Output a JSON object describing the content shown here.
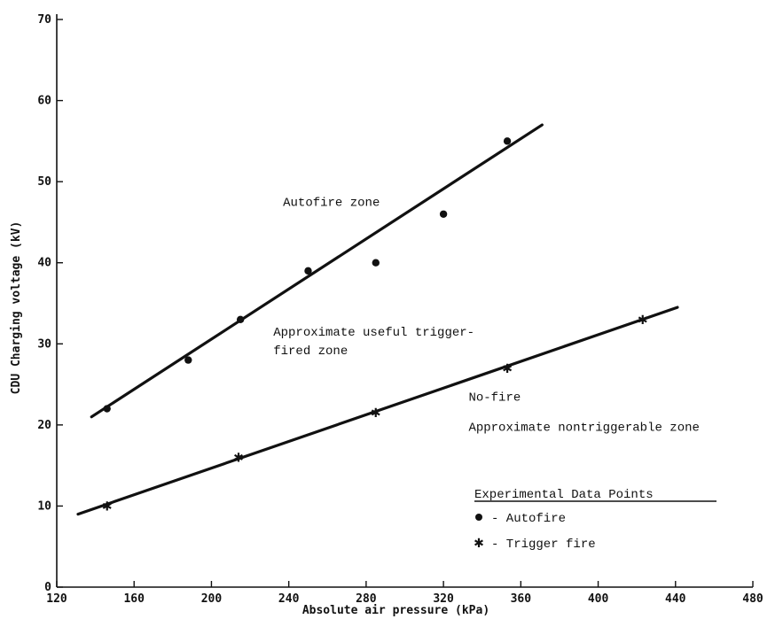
{
  "chart_data": {
    "type": "scatter",
    "xlabel": "Absolute air pressure (kPa)",
    "ylabel": "CDU Charging voltage (kV)",
    "xlim": [
      120,
      480
    ],
    "ylim": [
      0,
      70
    ],
    "x_ticks": [
      120,
      160,
      200,
      240,
      280,
      320,
      360,
      400,
      440,
      480
    ],
    "y_ticks": [
      0,
      10,
      20,
      30,
      40,
      50,
      60,
      70
    ],
    "grid": false,
    "series": [
      {
        "name": "Autofire",
        "marker": "dot",
        "points": [
          [
            146,
            22
          ],
          [
            188,
            28
          ],
          [
            215,
            33
          ],
          [
            250,
            39
          ],
          [
            285,
            40
          ],
          [
            320,
            46
          ],
          [
            353,
            55
          ]
        ],
        "fit_line": [
          [
            138,
            21
          ],
          [
            371,
            57
          ]
        ]
      },
      {
        "name": "Trigger fire",
        "marker": "star",
        "points": [
          [
            146,
            10
          ],
          [
            214,
            16
          ],
          [
            285,
            21.5
          ],
          [
            353,
            27
          ],
          [
            423,
            33
          ]
        ],
        "fit_line": [
          [
            131,
            9
          ],
          [
            441,
            34.5
          ]
        ]
      }
    ],
    "annotations": [
      {
        "text": "Autofire zone",
        "x": 237,
        "y": 47
      },
      {
        "text": "Approximate useful trigger-",
        "x": 232,
        "y": 31
      },
      {
        "text": "fired zone",
        "x": 232,
        "y": 28.7
      },
      {
        "text": "No-fire",
        "x": 333,
        "y": 23
      },
      {
        "text": "Approximate nontriggerable zone",
        "x": 333,
        "y": 19.3
      }
    ],
    "legend": {
      "title": "Experimental Data Points",
      "position": "right",
      "items": [
        {
          "marker": "dot",
          "label": "- Autofire"
        },
        {
          "marker": "star",
          "label": "- Trigger fire"
        }
      ]
    }
  }
}
